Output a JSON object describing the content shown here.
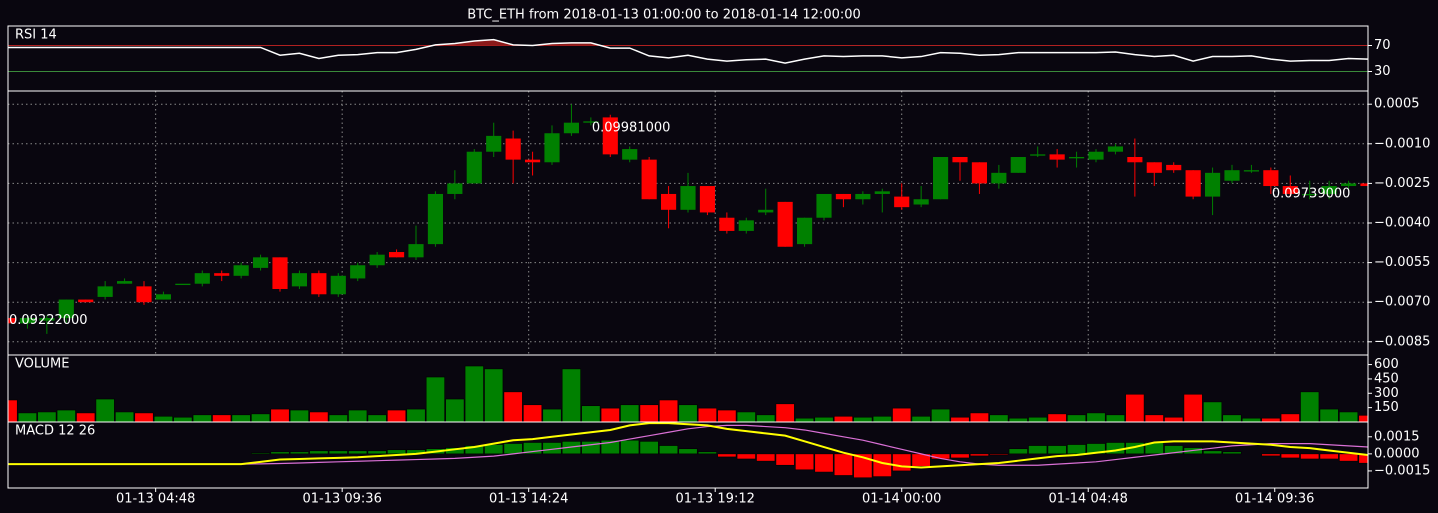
{
  "chart_data": [
    {
      "type": "line",
      "title": "RSI 14",
      "ylim": [
        0,
        100
      ],
      "yticks": [
        30,
        70
      ],
      "tick_line_colors": [
        "#3a8a3a",
        "#b02020"
      ],
      "fill_color": "#8b1a1a",
      "color": "#ffffff",
      "values": [
        67,
        67,
        67,
        67,
        67,
        67,
        67,
        67,
        67,
        67,
        67,
        67,
        67,
        67,
        55,
        58,
        50,
        55,
        56,
        59,
        59,
        64,
        71,
        73,
        77,
        79,
        71,
        70,
        73,
        74,
        74,
        66,
        66,
        54,
        51,
        55,
        49,
        46,
        48,
        49,
        43,
        49,
        54,
        53,
        54,
        54,
        51,
        53,
        59,
        58,
        55,
        56,
        59,
        59,
        59,
        59,
        59,
        60,
        56,
        53,
        55,
        46,
        53,
        53,
        54,
        49,
        46,
        47,
        47,
        50,
        49
      ]
    },
    {
      "type": "candlestick",
      "title": "BTC_ETH from 2018-01-13 01:00:00 to 2018-01-14 12:00:00",
      "up_color": "#008000",
      "down_color": "#ff0000",
      "grid": true,
      "xlim": [
        "01-13 01:00",
        "01-14 12:00"
      ],
      "xticks": [
        "01-13 04:48",
        "01-13 09:36",
        "01-13 14:24",
        "01-13 19:12",
        "01-14 00:00",
        "01-14 04:48",
        "01-14 09:36"
      ],
      "x": [
        "01-13 01:00",
        "01-13 01:30",
        "01-13 02:00",
        "01-13 02:30",
        "01-13 03:00",
        "01-13 03:30",
        "01-13 04:00",
        "01-13 04:30",
        "01-13 05:00",
        "01-13 05:30",
        "01-13 06:00",
        "01-13 06:30",
        "01-13 07:00",
        "01-13 07:30",
        "01-13 08:00",
        "01-13 08:30",
        "01-13 09:00",
        "01-13 09:30",
        "01-13 10:00",
        "01-13 10:30",
        "01-13 11:00",
        "01-13 11:30",
        "01-13 12:00",
        "01-13 12:30",
        "01-13 13:00",
        "01-13 13:30",
        "01-13 14:00",
        "01-13 14:30",
        "01-13 15:00",
        "01-13 15:30",
        "01-13 16:00",
        "01-13 16:30",
        "01-13 17:00",
        "01-13 17:30",
        "01-13 18:00",
        "01-13 18:30",
        "01-13 19:00",
        "01-13 19:30",
        "01-13 20:00",
        "01-13 20:30",
        "01-13 21:00",
        "01-13 21:30",
        "01-13 22:00",
        "01-13 22:30",
        "01-13 23:00",
        "01-13 23:30",
        "01-14 00:00",
        "01-14 00:30",
        "01-14 01:00",
        "01-14 01:30",
        "01-14 02:00",
        "01-14 02:30",
        "01-14 03:00",
        "01-14 03:30",
        "01-14 04:00",
        "01-14 04:30",
        "01-14 05:00",
        "01-14 05:30",
        "01-14 06:00",
        "01-14 06:30",
        "01-14 07:00",
        "01-14 07:30",
        "01-14 08:00",
        "01-14 08:30",
        "01-14 09:00",
        "01-14 09:30",
        "01-14 10:00",
        "01-14 10:30",
        "01-14 11:00",
        "01-14 11:30",
        "01-14 12:00"
      ],
      "ylim": [
        -0.009,
        0.001
      ],
      "yticks": [
        0.0005,
        {
          "value": -0.001,
          "label": "−0.0010"
        },
        {
          "value": -0.0025,
          "label": "−0.0025"
        },
        {
          "value": -0.004,
          "label": "−0.0040"
        },
        {
          "value": -0.0055,
          "label": "−0.0055"
        },
        {
          "value": -0.007,
          "label": "−0.0070"
        },
        {
          "value": -0.0085,
          "label": "−0.0085"
        }
      ],
      "open": [
        -0.0076,
        -0.0078,
        -0.0077,
        -0.0076,
        -0.0069,
        -0.0068,
        -0.0063,
        -0.0064,
        -0.0069,
        -0.00635,
        -0.0063,
        -0.0059,
        -0.006,
        -0.0057,
        -0.0053,
        -0.0064,
        -0.0059,
        -0.0067,
        -0.0061,
        -0.0056,
        -0.0051,
        -0.0053,
        -0.0048,
        -0.0029,
        -0.0025,
        -0.0013,
        -0.0008,
        -0.0016,
        -0.0017,
        -0.0006,
        -0.0002,
        0.0,
        -0.0016,
        -0.0016,
        -0.0029,
        -0.0035,
        -0.0026,
        -0.0038,
        -0.0043,
        -0.0036,
        -0.0032,
        -0.0048,
        -0.0038,
        -0.0029,
        -0.0031,
        -0.0029,
        -0.003,
        -0.0033,
        -0.0031,
        -0.0015,
        -0.0017,
        -0.0025,
        -0.0021,
        -0.00145,
        -0.0014,
        -0.00155,
        -0.0016,
        -0.0013,
        -0.0015,
        -0.0017,
        -0.0018,
        -0.002,
        -0.003,
        -0.0024,
        -0.00205,
        -0.002,
        -0.0026,
        -0.00295,
        -0.0029,
        -0.0026,
        -0.0025
      ],
      "close": [
        -0.0078,
        -0.0076,
        -0.0076,
        -0.0069,
        -0.007,
        -0.0064,
        -0.0062,
        -0.007,
        -0.0067,
        -0.0063,
        -0.0059,
        -0.006,
        -0.0056,
        -0.0053,
        -0.0065,
        -0.0059,
        -0.0067,
        -0.006,
        -0.0056,
        -0.0052,
        -0.0053,
        -0.0048,
        -0.0029,
        -0.0025,
        -0.0013,
        -0.0007,
        -0.0016,
        -0.0017,
        -0.0006,
        -0.0002,
        -0.00015,
        -0.0014,
        -0.0012,
        -0.0031,
        -0.0035,
        -0.0026,
        -0.0036,
        -0.0043,
        -0.0039,
        -0.0035,
        -0.0049,
        -0.0038,
        -0.0029,
        -0.0031,
        -0.0029,
        -0.0028,
        -0.0034,
        -0.0031,
        -0.0015,
        -0.0017,
        -0.0025,
        -0.0021,
        -0.0015,
        -0.0014,
        -0.0016,
        -0.0015,
        -0.0013,
        -0.0011,
        -0.0017,
        -0.0021,
        -0.002,
        -0.003,
        -0.0021,
        -0.002,
        -0.002,
        -0.0026,
        -0.0029,
        -0.0029,
        -0.0026,
        -0.0025,
        -0.0026
      ],
      "high": [
        -0.0075,
        -0.0075,
        -0.0075,
        -0.0069,
        -0.0069,
        -0.0062,
        -0.0061,
        -0.0062,
        -0.0066,
        -0.0063,
        -0.0058,
        -0.0058,
        -0.0055,
        -0.0052,
        -0.0053,
        -0.0058,
        -0.0058,
        -0.0059,
        -0.0055,
        -0.0051,
        -0.005,
        -0.0041,
        -0.0028,
        -0.002,
        -0.0012,
        -0.0002,
        -0.0005,
        -0.0013,
        -0.0003,
        0.0005,
        0.0,
        0.0001,
        -0.0011,
        -0.0015,
        -0.0026,
        -0.0021,
        -0.0026,
        -0.0036,
        -0.0038,
        -0.0027,
        -0.0032,
        -0.0038,
        -0.0029,
        -0.0029,
        -0.0028,
        -0.0027,
        -0.0025,
        -0.0026,
        -0.0015,
        -0.0015,
        -0.0017,
        -0.0018,
        -0.0015,
        -0.0011,
        -0.0012,
        -0.0013,
        -0.0012,
        -0.001,
        -0.0008,
        -0.0017,
        -0.0017,
        -0.002,
        -0.0019,
        -0.0018,
        -0.0018,
        -0.0019,
        -0.0022,
        -0.0024,
        -0.0024,
        -0.0024,
        -0.0024
      ],
      "low": [
        -0.0079,
        -0.008,
        -0.0082,
        -0.0078,
        -0.007,
        -0.0069,
        -0.0063,
        -0.0071,
        -0.0069,
        -0.0063,
        -0.0064,
        -0.0062,
        -0.0061,
        -0.0058,
        -0.0066,
        -0.0065,
        -0.0068,
        -0.0068,
        -0.0062,
        -0.0057,
        -0.0053,
        -0.0054,
        -0.0049,
        -0.0031,
        -0.0025,
        -0.0015,
        -0.0025,
        -0.0022,
        -0.0018,
        -0.0007,
        -0.0003,
        -0.0015,
        -0.0017,
        -0.0031,
        -0.0042,
        -0.0036,
        -0.0037,
        -0.0044,
        -0.0044,
        -0.0037,
        -0.0049,
        -0.0049,
        -0.0039,
        -0.0034,
        -0.0033,
        -0.0036,
        -0.0035,
        -0.0034,
        -0.0031,
        -0.0024,
        -0.0029,
        -0.0027,
        -0.0021,
        -0.0015,
        -0.0019,
        -0.0019,
        -0.0017,
        -0.0014,
        -0.003,
        -0.0026,
        -0.0021,
        -0.0031,
        -0.0037,
        -0.0025,
        -0.0021,
        -0.0029,
        -0.003,
        -0.0031,
        -0.0031,
        -0.0027,
        -0.0027
      ],
      "annotations": [
        {
          "text": "0.09222000",
          "x": "01-13 01:00",
          "y": -0.0077
        },
        {
          "text": "0.09981000",
          "x": "01-13 16:00",
          "y": -0.0004
        },
        {
          "text": "0.09739000",
          "x": "01-14 09:30",
          "y": -0.0029
        }
      ]
    },
    {
      "type": "bar",
      "title": "VOLUME",
      "ylim": [
        0,
        700
      ],
      "yticks": [
        150,
        300,
        450,
        600
      ],
      "values": [
        230,
        95,
        105,
        125,
        95,
        240,
        105,
        95,
        60,
        50,
        75,
        75,
        75,
        85,
        135,
        125,
        105,
        75,
        125,
        75,
        125,
        135,
        470,
        240,
        585,
        555,
        315,
        180,
        135,
        555,
        170,
        145,
        180,
        180,
        230,
        180,
        145,
        125,
        105,
        75,
        190,
        40,
        50,
        60,
        50,
        60,
        145,
        60,
        135,
        50,
        95,
        75,
        40,
        50,
        85,
        75,
        95,
        75,
        290,
        75,
        50,
        290,
        210,
        75,
        40,
        40,
        85,
        315,
        135,
        105,
        70
      ]
    },
    {
      "type": "macd",
      "title": "MACD 12 26",
      "ylim": [
        -0.003,
        0.0028
      ],
      "yticks": [
        0.0015,
        {
          "value": 0,
          "label": "0.0000"
        },
        {
          "value": -0.0015,
          "label": "−0.0015"
        }
      ],
      "series": [
        {
          "color": "#ffff00",
          "values": [
            -0.0009,
            -0.0009,
            -0.0009,
            -0.0009,
            -0.0009,
            -0.0009,
            -0.0009,
            -0.0009,
            -0.0009,
            -0.0009,
            -0.0009,
            -0.0009,
            -0.0009,
            -0.0007,
            -0.0005,
            -0.00045,
            -0.0004,
            -0.00035,
            -0.0003,
            -0.0002,
            -0.0001,
            0.0,
            0.0002,
            0.0004,
            0.0006,
            0.0009,
            0.0012,
            0.0013,
            0.0015,
            0.0017,
            0.0019,
            0.0021,
            0.0025,
            0.0027,
            0.0027,
            0.0026,
            0.0025,
            0.0022,
            0.002,
            0.0018,
            0.0016,
            0.0011,
            0.0006,
            0.0001,
            -0.0003,
            -0.0008,
            -0.0011,
            -0.0012,
            -0.0011,
            -0.001,
            -0.0009,
            -0.0008,
            -0.0006,
            -0.0004,
            -0.0002,
            -0.0001,
            0.0001,
            0.0003,
            0.0006,
            0.001,
            0.0011,
            0.0011,
            0.0011,
            0.001,
            0.0009,
            0.0008,
            0.0006,
            0.0005,
            0.0003,
            0.0001,
            -0.0001
          ]
        },
        {
          "color": "#da70d6",
          "values": [
            -0.0009,
            -0.0009,
            -0.0009,
            -0.0009,
            -0.0009,
            -0.0009,
            -0.0009,
            -0.0009,
            -0.0009,
            -0.0009,
            -0.0009,
            -0.0009,
            -0.0009,
            -0.00088,
            -0.00085,
            -0.0008,
            -0.00075,
            -0.0007,
            -0.00065,
            -0.0006,
            -0.00055,
            -0.0005,
            -0.00045,
            -0.0004,
            -0.0003,
            -0.0002,
            0.0,
            0.0002,
            0.0004,
            0.0006,
            0.0008,
            0.001,
            0.0013,
            0.0016,
            0.0019,
            0.0022,
            0.0024,
            0.0025,
            0.0025,
            0.0024,
            0.0023,
            0.0021,
            0.0018,
            0.0015,
            0.0012,
            0.0008,
            0.0004,
            0.0,
            -0.0004,
            -0.0007,
            -0.0009,
            -0.001,
            -0.001,
            -0.001,
            -0.0009,
            -0.0008,
            -0.0007,
            -0.0005,
            -0.0003,
            -0.0001,
            0.0001,
            0.0003,
            0.0005,
            0.0007,
            0.0008,
            0.0009,
            0.0009,
            0.0009,
            0.0008,
            0.0007,
            0.0006
          ]
        }
      ],
      "histogram": {
        "up_color": "#008000",
        "down_color": "#ff0000",
        "values": [
          0,
          0,
          0,
          0,
          0,
          0,
          0,
          0,
          0,
          0,
          0,
          0,
          0,
          9e-05,
          0.00018,
          0.00018,
          0.00027,
          0.00027,
          0.00027,
          0.00027,
          0.00036,
          0.00036,
          0.00045,
          0.00055,
          0.00073,
          0.00082,
          0.00091,
          0.001,
          0.001,
          0.0011,
          0.0011,
          0.0012,
          0.0012,
          0.0011,
          0.00073,
          0.00045,
          0.00018,
          -0.00027,
          -0.00045,
          -0.00064,
          -0.001,
          -0.0014,
          -0.0016,
          -0.0019,
          -0.0021,
          -0.002,
          -0.0015,
          -0.0011,
          -0.00045,
          -0.00036,
          -0.00018,
          -9e-05,
          0.00045,
          0.00073,
          0.00073,
          0.00082,
          0.00091,
          0.001,
          0.001,
          0.001,
          0.00073,
          0.00055,
          0.00027,
          0.00018,
          0,
          -0.00018,
          -0.00036,
          -0.00045,
          -0.00045,
          -0.00064,
          -0.00082
        ]
      }
    }
  ]
}
